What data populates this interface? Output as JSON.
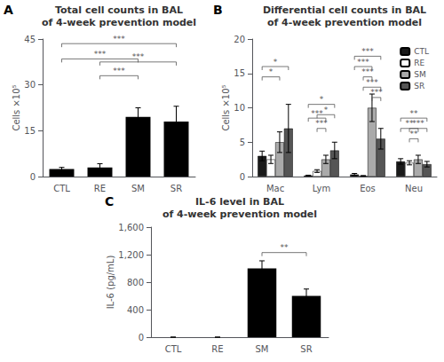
{
  "chart_data": [
    {
      "type": "bar",
      "title": "Total cell counts in BAL\nof 4-week prevention model",
      "ylabel": "Cells ×10⁵",
      "categories": [
        "CTL",
        "RE",
        "SM",
        "SR"
      ],
      "values": [
        2.5,
        3.0,
        19.5,
        18.0
      ],
      "errors": [
        0.5,
        1.2,
        3.0,
        5.0
      ],
      "color": "#000000",
      "ylim": [
        0,
        45
      ],
      "yticks": [
        0,
        15,
        30,
        45
      ],
      "grid": false,
      "annotations": [
        {
          "text": "A"
        },
        {
          "text": "***",
          "x1": "CTL",
          "x2": "SM",
          "y": 38.5
        },
        {
          "text": "***",
          "x1": "CTL",
          "x2": "SR",
          "y": 43.5
        },
        {
          "text": "***",
          "x1": "RE",
          "x2": "SM",
          "y": 33.0
        },
        {
          "text": "***",
          "x1": "RE",
          "x2": "SR",
          "y": 37.5
        }
      ]
    },
    {
      "type": "bar",
      "title": "Differential cell counts in BAL\nof 4-week prevention model",
      "ylabel": "Cells ×10⁵",
      "categories": [
        "Mac",
        "Lym",
        "Eos",
        "Neu"
      ],
      "series": [
        {
          "name": "CTL",
          "color": "#1a1a1a",
          "values": [
            3.0,
            0.15,
            0.3,
            2.2
          ],
          "errors": [
            0.7,
            0.05,
            0.15,
            0.4
          ]
        },
        {
          "name": "RE",
          "color": "#ffffff",
          "values": [
            2.5,
            0.8,
            0.1,
            2.0
          ],
          "errors": [
            0.6,
            0.2,
            0.05,
            0.3
          ]
        },
        {
          "name": "SM",
          "color": "#aaaaaa",
          "values": [
            5.0,
            2.5,
            10.0,
            2.5
          ],
          "errors": [
            1.5,
            0.6,
            2.0,
            0.6
          ]
        },
        {
          "name": "SR",
          "color": "#555555",
          "values": [
            7.0,
            3.8,
            5.5,
            1.8
          ],
          "errors": [
            3.5,
            1.2,
            1.5,
            0.4
          ]
        }
      ],
      "ylim": [
        0,
        20
      ],
      "yticks": [
        0,
        5,
        10,
        15,
        20
      ],
      "grid": false,
      "legend": "upper right",
      "annotations": [
        {
          "text": "B"
        },
        {
          "text": "*",
          "category": "Mac",
          "x1": "CTL",
          "x2": "SM",
          "y": 14.5
        },
        {
          "text": "*",
          "category": "Mac",
          "x1": "CTL",
          "x2": "SR",
          "y": 16.0
        },
        {
          "text": "***",
          "category": "Lym",
          "x1": "CTL",
          "x2": "SM",
          "y": 8.5
        },
        {
          "text": "*",
          "category": "Lym",
          "x1": "CTL",
          "x2": "SR",
          "y": 10.5
        },
        {
          "text": "***",
          "category": "Lym",
          "x1": "RE",
          "x2": "SM",
          "y": 7.0
        },
        {
          "text": "*",
          "category": "Lym",
          "x1": "RE",
          "x2": "SR",
          "y": 9.0
        },
        {
          "text": "***",
          "category": "Eos",
          "x1": "CTL",
          "x2": "SM",
          "y": 16.0
        },
        {
          "text": "***",
          "category": "Eos",
          "x1": "CTL",
          "x2": "SR",
          "y": 17.5
        },
        {
          "text": "***",
          "category": "Eos",
          "x1": "RE",
          "x2": "SM",
          "y": 14.5
        },
        {
          "text": "***",
          "category": "Eos",
          "x1": "RE",
          "x2": "SR",
          "y": 13.0
        },
        {
          "text": "***",
          "category": "Eos",
          "x1": "SM",
          "x2": "SR",
          "y": 11.5
        },
        {
          "text": "**",
          "category": "Neu",
          "x1": "CTL",
          "x2": "SM",
          "y": 7.0
        },
        {
          "text": "**",
          "category": "Neu",
          "x1": "CTL",
          "x2": "SR",
          "y": 8.5
        },
        {
          "text": "**",
          "category": "Neu",
          "x1": "RE",
          "x2": "SM",
          "y": 5.5
        },
        {
          "text": "***",
          "category": "Neu",
          "x1": "RE",
          "x2": "SR",
          "y": 7.0
        }
      ]
    },
    {
      "type": "bar",
      "title": "IL-6 level in BAL\nof 4-week prevention model",
      "ylabel": "IL-6 (pg/mL)",
      "categories": [
        "CTL",
        "RE",
        "SM",
        "SR"
      ],
      "values": [
        0,
        0,
        1000,
        600
      ],
      "errors": [
        0,
        0,
        110,
        100
      ],
      "color": "#000000",
      "ylim": [
        0,
        1600
      ],
      "yticks": [
        0,
        400,
        800,
        {
          "value": 1200,
          "label": "1,200"
        },
        {
          "value": 1600,
          "label": "1,600"
        }
      ],
      "grid": false,
      "annotations": [
        {
          "text": "C"
        },
        {
          "text": "**",
          "x1": "SM",
          "x2": "SR",
          "y": 1230
        }
      ]
    }
  ]
}
